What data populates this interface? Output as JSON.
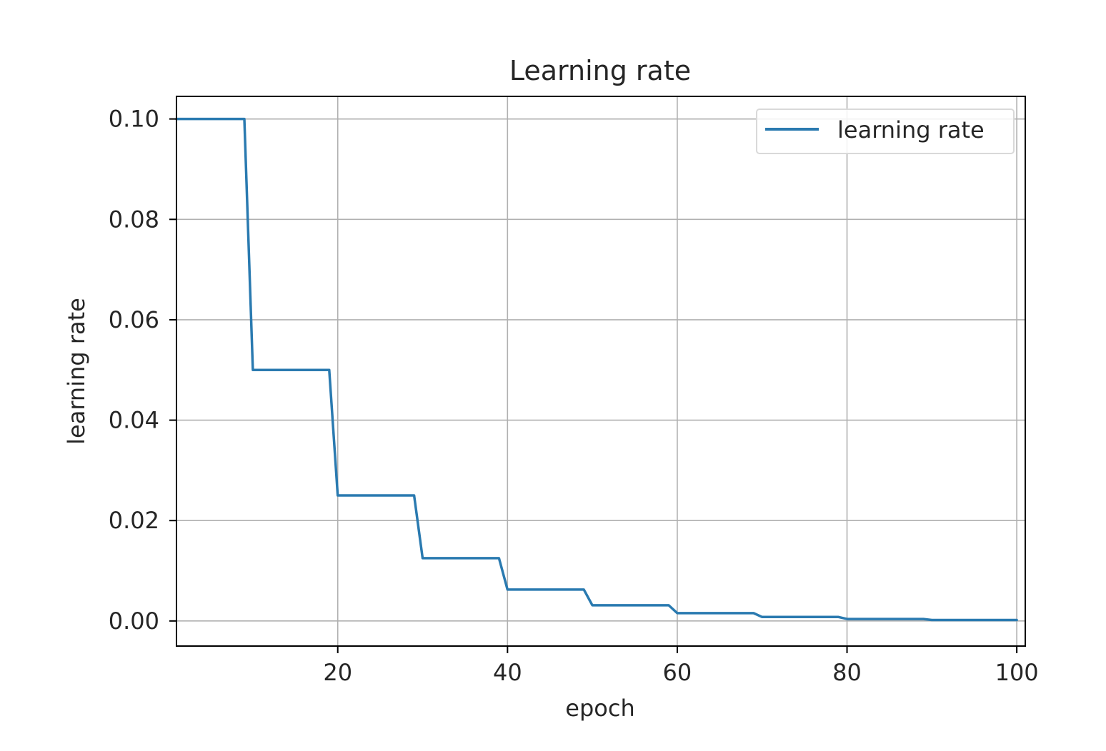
{
  "chart_data": {
    "type": "line",
    "title": "Learning rate",
    "xlabel": "epoch",
    "ylabel": "learning rate",
    "xlim": [
      1,
      101
    ],
    "ylim": [
      -0.005,
      0.1045
    ],
    "x_ticks": [
      20,
      40,
      60,
      80,
      100
    ],
    "x_tick_labels": [
      "20",
      "40",
      "60",
      "80",
      "100"
    ],
    "y_ticks": [
      0.0,
      0.02,
      0.04,
      0.06,
      0.08,
      0.1
    ],
    "y_tick_labels": [
      "0.00",
      "0.02",
      "0.04",
      "0.06",
      "0.08",
      "0.10"
    ],
    "grid": true,
    "legend_position": "upper right",
    "series": [
      {
        "name": "learning rate",
        "color": "#2a7ab0",
        "x": [
          1,
          9,
          10,
          19,
          20,
          29,
          30,
          39,
          40,
          49,
          50,
          59,
          60,
          69,
          70,
          79,
          80,
          89,
          90,
          100
        ],
        "y": [
          0.1,
          0.1,
          0.05,
          0.05,
          0.025,
          0.025,
          0.0125,
          0.0125,
          0.00625,
          0.00625,
          0.003125,
          0.003125,
          0.0015625,
          0.0015625,
          0.00078125,
          0.00078125,
          0.000390625,
          0.000390625,
          0.0001953125,
          0.0001953125
        ]
      }
    ]
  }
}
